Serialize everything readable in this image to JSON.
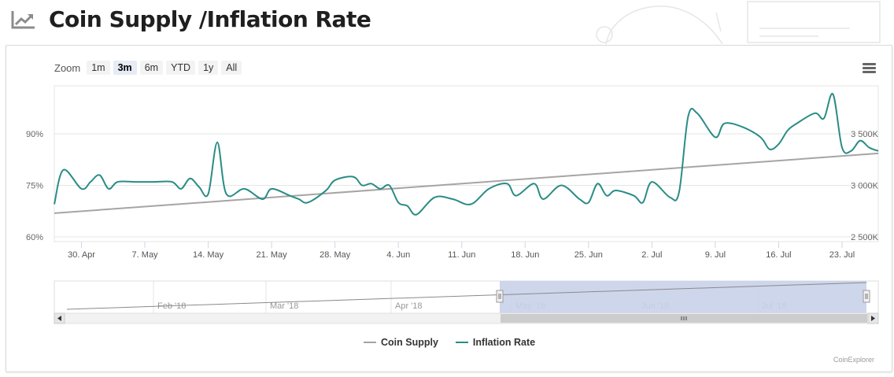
{
  "header": {
    "title": "Coin Supply /Inflation Rate",
    "icon": "line-chart-icon"
  },
  "zoom": {
    "label": "Zoom",
    "buttons": [
      "1m",
      "3m",
      "6m",
      "YTD",
      "1y",
      "All"
    ],
    "active": "3m"
  },
  "menu_icon": "hamburger-menu-icon",
  "colors": {
    "supply": "#a8a4a4",
    "inflation": "#2a8c86",
    "navigator_mask": "#c9d1ea"
  },
  "chart_data": {
    "type": "line",
    "title": "",
    "x_ticks": [
      "30. Apr",
      "7. May",
      "14. May",
      "21. May",
      "28. May",
      "4. Jun",
      "11. Jun",
      "18. Jun",
      "25. Jun",
      "2. Jul",
      "9. Jul",
      "16. Jul",
      "23. Jul"
    ],
    "left_axis": {
      "ticks": [
        "60%",
        "75%",
        "90%"
      ],
      "range": [
        60,
        90
      ]
    },
    "right_axis": {
      "ticks": [
        "2 500K",
        "3 000K",
        "3 500K"
      ],
      "range": [
        2500,
        3500
      ]
    },
    "series": [
      {
        "name": "Coin Supply",
        "axis": "right",
        "x": [
          "2018-04-27",
          "2018-07-27"
        ],
        "values": [
          2730,
          3310
        ]
      },
      {
        "name": "Inflation Rate",
        "axis": "left",
        "x": [
          "2018-04-27",
          "2018-04-28",
          "2018-04-30",
          "2018-05-01",
          "2018-05-02",
          "2018-05-03",
          "2018-05-04",
          "2018-05-06",
          "2018-05-08",
          "2018-05-10",
          "2018-05-11",
          "2018-05-12",
          "2018-05-13",
          "2018-05-14",
          "2018-05-15",
          "2018-05-16",
          "2018-05-18",
          "2018-05-20",
          "2018-05-21",
          "2018-05-23",
          "2018-05-24",
          "2018-05-25",
          "2018-05-27",
          "2018-05-28",
          "2018-05-30",
          "2018-05-31",
          "2018-06-01",
          "2018-06-02",
          "2018-06-03",
          "2018-06-04",
          "2018-06-05",
          "2018-06-06",
          "2018-06-08",
          "2018-06-10",
          "2018-06-12",
          "2018-06-14",
          "2018-06-16",
          "2018-06-17",
          "2018-06-19",
          "2018-06-20",
          "2018-06-22",
          "2018-06-24",
          "2018-06-25",
          "2018-06-26",
          "2018-06-27",
          "2018-06-28",
          "2018-06-30",
          "2018-07-01",
          "2018-07-02",
          "2018-07-04",
          "2018-07-05",
          "2018-07-06",
          "2018-07-07",
          "2018-07-09",
          "2018-07-10",
          "2018-07-12",
          "2018-07-14",
          "2018-07-15",
          "2018-07-16",
          "2018-07-17",
          "2018-07-18",
          "2018-07-20",
          "2018-07-21",
          "2018-07-22",
          "2018-07-23",
          "2018-07-24",
          "2018-07-25",
          "2018-07-26",
          "2018-07-27"
        ],
        "values": [
          69.5,
          79.5,
          74,
          76,
          78,
          74,
          76,
          76,
          76,
          76,
          74,
          77,
          74.5,
          72.5,
          87.5,
          72.5,
          74,
          71,
          74,
          72,
          71,
          70,
          73.5,
          76.5,
          77.5,
          75,
          75.5,
          74,
          75,
          70,
          69,
          66.5,
          71.5,
          71,
          69.5,
          74,
          75.5,
          72,
          75.5,
          71,
          75,
          71,
          70,
          75.5,
          72,
          73.5,
          72,
          70,
          76,
          71.5,
          73,
          95,
          96,
          89,
          93,
          92,
          89,
          85.5,
          87,
          91,
          93,
          96,
          94.5,
          101.5,
          86,
          85,
          88,
          86,
          85
        ]
      }
    ]
  },
  "navigator": {
    "labels": [
      "Feb '18",
      "Mar '18",
      "Apr '18",
      "May '18",
      "Jun '18",
      "Jul '18"
    ]
  },
  "legend": {
    "supply_label": "Coin Supply",
    "inflation_label": "Inflation Rate"
  },
  "credits": "CoinExplorer"
}
